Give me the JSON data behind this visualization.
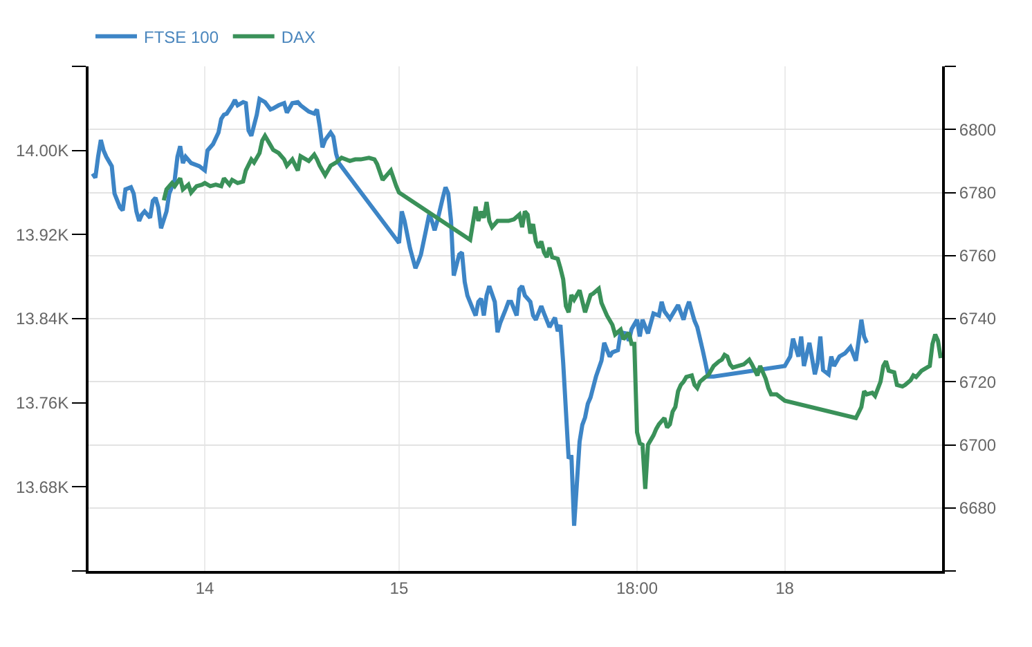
{
  "chart_data": {
    "type": "line",
    "categories": [
      null,
      null,
      null,
      null,
      null,
      null,
      null,
      null,
      null,
      null,
      null,
      null,
      null,
      null,
      null,
      null,
      null,
      null,
      null,
      null,
      null,
      null,
      null,
      null,
      null,
      null,
      null,
      null,
      null,
      null,
      null,
      null,
      null,
      null,
      null,
      null,
      null,
      null,
      null,
      null,
      null,
      null,
      "14",
      null,
      null,
      null,
      null,
      null,
      null,
      null,
      null,
      null,
      null,
      null,
      null,
      null,
      null,
      null,
      null,
      null,
      null,
      null,
      null,
      null,
      null,
      null,
      null,
      null,
      null,
      null,
      null,
      null,
      null,
      null,
      null,
      null,
      null,
      null,
      null,
      null,
      null,
      null,
      null,
      null,
      null,
      null,
      null,
      null,
      null,
      null,
      null,
      null,
      null,
      null,
      null,
      null,
      null,
      null,
      null,
      null,
      null,
      null,
      null,
      null,
      null,
      null,
      null,
      null,
      null,
      null,
      null,
      null,
      null,
      "15",
      null,
      null,
      null,
      null,
      null,
      null,
      null,
      null,
      null,
      null,
      null,
      null,
      null,
      null,
      null,
      null,
      null,
      null,
      null,
      null,
      null,
      null,
      null,
      null,
      null,
      null,
      null,
      null,
      null,
      null,
      null,
      null,
      null,
      null,
      null,
      null,
      null,
      null,
      null,
      null,
      null,
      null,
      null,
      null,
      null,
      null,
      null,
      null,
      null,
      null,
      null,
      null,
      null,
      null,
      null,
      null,
      null,
      null,
      null,
      null,
      null,
      null,
      null,
      null,
      null,
      null,
      null,
      null,
      null,
      null,
      null,
      null,
      null,
      null,
      null,
      null,
      null,
      null,
      null,
      null,
      null,
      null,
      null,
      null,
      null,
      null,
      "18:00",
      null,
      null,
      null,
      null,
      null,
      null,
      null,
      null,
      null,
      null,
      null,
      null,
      null,
      null,
      null,
      null,
      null,
      null,
      null,
      null,
      null,
      null,
      null,
      null,
      null,
      null,
      null,
      null,
      null,
      null,
      null,
      null,
      null,
      null,
      null,
      null,
      null,
      null,
      null,
      null,
      null,
      null,
      null,
      null,
      null,
      null,
      null,
      null,
      null,
      null,
      null,
      null,
      null,
      "18",
      null,
      null,
      null,
      null,
      null,
      null,
      null,
      null,
      null,
      null,
      null,
      null,
      null,
      null,
      null,
      null,
      null,
      null,
      null,
      null,
      null,
      null,
      null,
      null,
      null,
      null,
      null,
      null,
      null,
      null,
      null,
      null,
      null,
      null,
      null,
      null,
      null,
      null,
      null,
      null,
      null,
      null,
      null,
      null,
      null,
      null,
      null,
      null,
      null,
      null,
      null,
      null,
      null,
      null,
      null,
      null,
      null
    ],
    "ylim": [
      13600,
      14080
    ],
    "yticks": [
      {
        "value": 13600,
        "label": null
      },
      {
        "value": 13680,
        "label": "13.68K"
      },
      {
        "value": 13760,
        "label": "13.76K"
      },
      {
        "value": 13840,
        "label": "13.84K"
      },
      {
        "value": 13920,
        "label": "13.92K"
      },
      {
        "value": 14000,
        "label": "14.00K"
      },
      {
        "value": 14080,
        "label": null
      }
    ],
    "y2lim": [
      6660,
      6820
    ],
    "y2ticks": [
      {
        "value": 6660,
        "label": null
      },
      6680,
      6700,
      6720,
      6740,
      6760,
      6780,
      6800,
      {
        "value": 6820,
        "label": null
      }
    ],
    "grid": true,
    "legend": "top left",
    "marker": "none",
    "line_style": "solid",
    "series": [
      {
        "name": "FTSE 100",
        "color": "#3d85c6",
        "values": [
          null,
          13978,
          13974,
          13994,
          14010,
          14000,
          13994,
          null,
          13985,
          13959,
          null,
          13946,
          13943,
          13963,
          null,
          13965,
          13959,
          13942,
          13933,
          13939,
          13942,
          null,
          13936,
          13952,
          13955,
          13946,
          13926,
          null,
          13942,
          13959,
          null,
          13972,
          13994,
          14004,
          13988,
          13994,
          null,
          13988,
          null,
          null,
          13985,
          null,
          13981,
          14000,
          null,
          14006,
          null,
          14017,
          14030,
          14034,
          14035,
          null,
          14043,
          14048,
          14043,
          null,
          14046,
          14045,
          14019,
          14014,
          null,
          14034,
          14049,
          null,
          14046,
          null,
          14039,
          14040,
          null,
          14043,
          null,
          14045,
          14036,
          null,
          14045,
          null,
          14046,
          14043,
          null,
          null,
          14037,
          null,
          14035,
          14039,
          14023,
          14003,
          14010,
          null,
          14017,
          14013,
          13997,
          13988,
          null,
          null,
          null,
          null,
          null,
          null,
          null,
          null,
          null,
          null,
          null,
          null,
          null,
          null,
          null,
          null,
          null,
          null,
          null,
          null,
          null,
          13912,
          13942,
          13933,
          13920,
          13907,
          null,
          13888,
          13894,
          13901,
          null,
          13926,
          13939,
          13933,
          13924,
          13933,
          null,
          13955,
          13965,
          13959,
          13933,
          13881,
          null,
          13901,
          13903,
          13875,
          13862,
          null,
          13849,
          13843,
          13856,
          13859,
          13843,
          13862,
          13871,
          null,
          13856,
          13827,
          13836,
          null,
          13849,
          13856,
          13856,
          null,
          13843,
          13868,
          13871,
          13862,
          null,
          13856,
          13843,
          13839,
          null,
          13852,
          13845,
          null,
          13832,
          null,
          13841,
          13828,
          13834,
          13798,
          null,
          13707,
          13710,
          13643,
          null,
          13723,
          13739,
          13746,
          13759,
          13765,
          null,
          13785,
          null,
          13800,
          13817,
          null,
          13804,
          13808,
          null,
          13810,
          13827,
          null,
          13826,
          13819,
          13830,
          null,
          13839,
          13823,
          13839,
          null,
          13826,
          null,
          13845,
          null,
          13843,
          13856,
          13847,
          null,
          13840,
          null,
          null,
          13853,
          null,
          13839,
          13849,
          13856,
          null,
          13838,
          13832,
          null,
          13810,
          13798,
          13785,
          null,
          13785,
          null,
          null,
          null,
          null,
          null,
          null,
          null,
          null,
          null,
          null,
          null,
          null,
          null,
          null,
          null,
          null,
          null,
          null,
          null,
          null,
          null,
          null,
          null,
          null,
          null,
          13795,
          null,
          13804,
          13821,
          null,
          13804,
          13823,
          13795,
          null,
          13817,
          null,
          13787,
          13798,
          13823,
          13791,
          null,
          13787,
          13804,
          13795,
          null,
          13804,
          null,
          13807,
          null,
          13813,
          null,
          13800,
          13819,
          13839,
          13823,
          13817,
          null,
          null,
          null,
          null,
          null,
          null,
          null,
          null,
          null,
          null,
          null,
          null,
          null,
          null,
          null,
          null,
          null,
          null,
          null,
          null,
          null,
          null,
          null,
          null,
          null,
          null,
          null
        ]
      },
      {
        "name": "DAX",
        "color": "#3a9159",
        "axis": "y2",
        "values": [
          null,
          null,
          null,
          null,
          null,
          null,
          null,
          null,
          null,
          null,
          null,
          null,
          null,
          null,
          null,
          null,
          null,
          null,
          null,
          null,
          null,
          null,
          null,
          null,
          null,
          null,
          null,
          6777.5,
          6781,
          null,
          6783,
          6782,
          null,
          6784.5,
          6781,
          null,
          6782.5,
          6780,
          null,
          6782,
          null,
          6782.5,
          6783,
          null,
          6782,
          null,
          6782.5,
          null,
          6782,
          6784.5,
          null,
          6782.5,
          6784,
          null,
          6783,
          null,
          6783.5,
          6787,
          null,
          6790.5,
          6789.5,
          null,
          6792.5,
          6796.5,
          6798,
          null,
          6795,
          6793.5,
          null,
          6792.5,
          null,
          6790.5,
          6788.5,
          null,
          6790.5,
          null,
          6787,
          6791.5,
          null,
          6790.5,
          6790,
          null,
          6792,
          6790.5,
          6788.5,
          null,
          6785.5,
          null,
          6788.5,
          null,
          6789.5,
          null,
          6791,
          null,
          null,
          6790,
          null,
          6790.5,
          null,
          6790.5,
          null,
          null,
          6791,
          null,
          6790.5,
          6789,
          null,
          6784,
          null,
          6786,
          6787,
          null,
          6782,
          6780,
          null,
          null,
          null,
          null,
          null,
          null,
          null,
          null,
          null,
          null,
          null,
          null,
          null,
          null,
          null,
          null,
          null,
          null,
          null,
          null,
          null,
          null,
          null,
          null,
          null,
          6765,
          null,
          6775.5,
          6771,
          6774,
          6772,
          6777,
          6771,
          6769,
          null,
          6771,
          null,
          6771,
          null,
          6771,
          null,
          6771.5,
          null,
          6773,
          6769,
          6774,
          6773,
          6767,
          6770,
          6764.5,
          6762.5,
          6764.5,
          6761,
          6759.5,
          6762.5,
          6759.5,
          null,
          6759,
          6756,
          6752.5,
          6744,
          6742,
          6747.5,
          6746,
          null,
          6749,
          6745.5,
          6742,
          null,
          6747.5,
          6748,
          null,
          6749.5,
          6745,
          6743,
          6741,
          null,
          6738,
          6735,
          null,
          6736.5,
          6733.5,
          null,
          6735.5,
          6732,
          6732,
          6704,
          6700.5,
          6700,
          6686,
          6700,
          null,
          6703,
          6705,
          6706.5,
          null,
          6708.5,
          6705.5,
          6706.5,
          6710.5,
          6712,
          6717,
          6719,
          6720,
          6721.5,
          null,
          6722,
          6719,
          6718,
          6720,
          null,
          6721.5,
          6722,
          null,
          6725,
          null,
          6726.5,
          6727,
          6728.5,
          6728,
          6725.5,
          6724.5,
          null,
          6725,
          null,
          6725.5,
          null,
          6727,
          6725.5,
          null,
          6722,
          6725,
          null,
          6721,
          6718,
          6716,
          null,
          6716,
          null,
          null,
          6714,
          null,
          null,
          null,
          null,
          null,
          null,
          null,
          null,
          null,
          null,
          null,
          null,
          null,
          null,
          null,
          null,
          null,
          null,
          null,
          null,
          null,
          null,
          null,
          null,
          null,
          6708.5,
          null,
          6712,
          6717,
          6716,
          null,
          6716.5,
          6715.5,
          null,
          6720,
          6725,
          6726.5,
          6723.5,
          null,
          6723,
          6719,
          null,
          6718.5,
          6719,
          null,
          6720.5,
          6722,
          6721.5,
          null,
          6723.5,
          null,
          6724.5,
          6725,
          6732,
          6735,
          6733,
          6727.5
        ]
      }
    ]
  }
}
